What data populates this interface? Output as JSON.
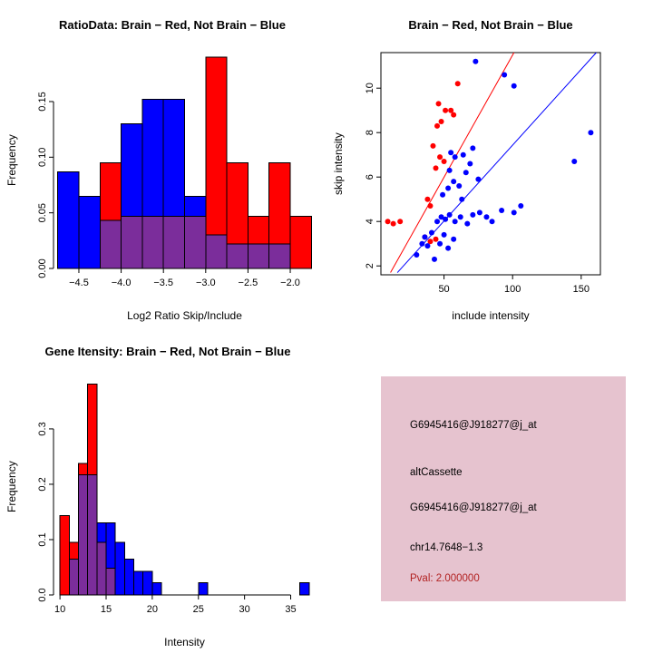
{
  "colors": {
    "red": "#FF0000",
    "blue": "#0000FF",
    "overlap": "#7B2D9B",
    "axis": "#000000",
    "info_bg": "#E6C3CF",
    "pval_red": "#B22222"
  },
  "chart_data": [
    {
      "id": "ratio-hist",
      "type": "histogram",
      "title": "RatioData: Brain − Red, Not Brain − Blue",
      "xlabel": "Log2 Ratio Skip/Include",
      "ylabel": "Frequency",
      "bin_start": -4.75,
      "bin_width": 0.25,
      "xlim": [
        -4.8,
        -1.7
      ],
      "ylim": [
        0,
        0.194
      ],
      "xticks": [
        -4.5,
        -4.0,
        -3.5,
        -3.0,
        -2.5,
        -2.0
      ],
      "xtick_labels": [
        "−4.5",
        "−4.0",
        "−3.5",
        "−3.0",
        "−2.5",
        "−2.0"
      ],
      "yticks": [
        0,
        0.05,
        0.1,
        0.15
      ],
      "ytick_labels": [
        "0.00",
        "0.05",
        "0.10",
        "0.15"
      ],
      "grid": false,
      "legend": "none",
      "series": [
        {
          "name": "Not Brain",
          "color": "blue",
          "values": [
            0.087,
            0.065,
            0.043,
            0.13,
            0.152,
            0.152,
            0.065,
            0.03,
            0.022,
            0.022,
            0.022,
            0
          ]
        },
        {
          "name": "Brain",
          "color": "red",
          "values": [
            0,
            0,
            0.095,
            0.047,
            0.047,
            0.047,
            0.047,
            0.19,
            0.095,
            0.047,
            0.095,
            0.047
          ]
        }
      ]
    },
    {
      "id": "intensity-scatter",
      "type": "scatter",
      "title": "Brain − Red, Not Brain − Blue",
      "xlabel": "include intensity",
      "ylabel": "skip intensity",
      "xlim": [
        4,
        164
      ],
      "ylim": [
        1.6,
        11.6
      ],
      "xticks": [
        50,
        100,
        150
      ],
      "xtick_labels": [
        "50",
        "100",
        "150"
      ],
      "yticks": [
        2,
        4,
        6,
        8,
        10
      ],
      "ytick_labels": [
        "2",
        "4",
        "6",
        "8",
        "10"
      ],
      "grid": false,
      "legend": "none",
      "box": true,
      "lines": [
        {
          "color": "red",
          "x1": 11,
          "y1": 1.7,
          "x2": 101,
          "y2": 11.6
        },
        {
          "color": "blue",
          "x1": 16,
          "y1": 1.7,
          "x2": 161,
          "y2": 11.6
        }
      ],
      "series": [
        {
          "name": "Brain",
          "color": "red",
          "points": [
            [
              9,
              4.0
            ],
            [
              13,
              3.9
            ],
            [
              18,
              4.0
            ],
            [
              36,
              3.3
            ],
            [
              40,
              3.1
            ],
            [
              44,
              3.2
            ],
            [
              40,
              4.7
            ],
            [
              38,
              5.0
            ],
            [
              44,
              6.4
            ],
            [
              47,
              6.9
            ],
            [
              50,
              6.7
            ],
            [
              42,
              7.4
            ],
            [
              45,
              8.3
            ],
            [
              48,
              8.5
            ],
            [
              46,
              9.3
            ],
            [
              51,
              9.0
            ],
            [
              55,
              9.0
            ],
            [
              57,
              8.8
            ],
            [
              60,
              10.2
            ]
          ]
        },
        {
          "name": "Not Brain",
          "color": "blue",
          "points": [
            [
              30,
              2.5
            ],
            [
              34,
              3.0
            ],
            [
              36,
              3.3
            ],
            [
              38,
              2.9
            ],
            [
              41,
              3.5
            ],
            [
              43,
              2.3
            ],
            [
              47,
              3.0
            ],
            [
              50,
              3.4
            ],
            [
              53,
              2.8
            ],
            [
              57,
              3.2
            ],
            [
              45,
              4.0
            ],
            [
              48,
              4.2
            ],
            [
              51,
              4.1
            ],
            [
              54,
              4.3
            ],
            [
              58,
              4.0
            ],
            [
              62,
              4.2
            ],
            [
              67,
              3.9
            ],
            [
              71,
              4.3
            ],
            [
              76,
              4.4
            ],
            [
              81,
              4.2
            ],
            [
              92,
              4.5
            ],
            [
              101,
              4.4
            ],
            [
              106,
              4.7
            ],
            [
              49,
              5.2
            ],
            [
              53,
              5.5
            ],
            [
              57,
              5.8
            ],
            [
              61,
              5.6
            ],
            [
              66,
              6.2
            ],
            [
              69,
              6.6
            ],
            [
              64,
              7.0
            ],
            [
              71,
              7.3
            ],
            [
              58,
              6.9
            ],
            [
              54,
              6.3
            ],
            [
              75,
              5.9
            ],
            [
              94,
              10.6
            ],
            [
              73,
              11.2
            ],
            [
              101,
              10.1
            ],
            [
              157,
              8.0
            ],
            [
              145,
              6.7
            ],
            [
              63,
              5.0
            ],
            [
              85,
              4.0
            ],
            [
              55,
              7.1
            ]
          ]
        }
      ]
    },
    {
      "id": "gene-hist",
      "type": "histogram",
      "title": "Gene Itensity: Brain − Red, Not Brain − Blue",
      "xlabel": "Intensity",
      "ylabel": "Frequency",
      "bin_start": 10,
      "bin_width": 1,
      "xlim": [
        9.3,
        37.7
      ],
      "ylim": [
        0,
        0.39
      ],
      "xticks": [
        10,
        15,
        20,
        25,
        30,
        35
      ],
      "xtick_labels": [
        "10",
        "15",
        "20",
        "25",
        "30",
        "35"
      ],
      "yticks": [
        0,
        0.1,
        0.2,
        0.3
      ],
      "ytick_labels": [
        "0.0",
        "0.1",
        "0.2",
        "0.3"
      ],
      "grid": false,
      "legend": "none",
      "series": [
        {
          "name": "Not Brain",
          "color": "blue",
          "values": [
            0,
            0.065,
            0.217,
            0.217,
            0.13,
            0.13,
            0.095,
            0.065,
            0.043,
            0.043,
            0.022,
            0,
            0,
            0,
            0,
            0.022,
            0,
            0,
            0,
            0,
            0,
            0,
            0,
            0,
            0,
            0,
            0.022
          ]
        },
        {
          "name": "Brain",
          "color": "red",
          "values": [
            0.143,
            0.095,
            0.238,
            0.381,
            0.095,
            0.048
          ]
        }
      ]
    }
  ],
  "info_box": {
    "lines": [
      {
        "text": "G6945416@J918277@j_at",
        "color": "#000000"
      },
      {
        "text": "altCassette",
        "color": "#000000"
      },
      {
        "text": "G6945416@J918277@j_at",
        "color": "#000000"
      },
      {
        "text": "chr14.7648−1.3",
        "color": "#000000"
      },
      {
        "text": "Pval: 2.000000",
        "color": "#B22222"
      }
    ]
  }
}
